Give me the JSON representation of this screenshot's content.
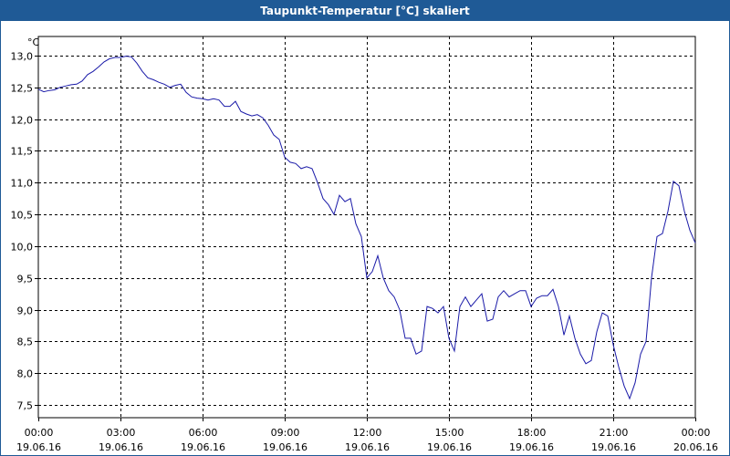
{
  "window": {
    "title": "Taupunkt-Temperatur [°C] skaliert"
  },
  "colors": {
    "titlebar": "#1f5a96",
    "line": "#1a1aa8",
    "grid": "#000000"
  },
  "chart_data": {
    "type": "line",
    "title": "",
    "xlabel": "",
    "ylabel": "°C",
    "ylim": [
      7.3,
      13.3
    ],
    "yticks": [
      7.5,
      8.0,
      8.5,
      9.0,
      9.5,
      10.0,
      10.5,
      11.0,
      11.5,
      12.0,
      12.5,
      13.0
    ],
    "ytick_labels": [
      "7,5",
      "8,0",
      "8,5",
      "9,0",
      "9,5",
      "10,0",
      "10,5",
      "11,0",
      "11,5",
      "12,0",
      "12,5",
      "13,0"
    ],
    "xlim": [
      0,
      24
    ],
    "xticks": [
      {
        "t": 0,
        "time": "00:00",
        "date": "19.06.16"
      },
      {
        "t": 3,
        "time": "03:00",
        "date": "19.06.16"
      },
      {
        "t": 6,
        "time": "06:00",
        "date": "19.06.16"
      },
      {
        "t": 9,
        "time": "09:00",
        "date": "19.06.16"
      },
      {
        "t": 12,
        "time": "12:00",
        "date": "19.06.16"
      },
      {
        "t": 15,
        "time": "15:00",
        "date": "19.06.16"
      },
      {
        "t": 18,
        "time": "18:00",
        "date": "19.06.16"
      },
      {
        "t": 21,
        "time": "21:00",
        "date": "19.06.16"
      },
      {
        "t": 24,
        "time": "00:00",
        "date": "20.06.16"
      }
    ],
    "grid": true,
    "series": [
      {
        "points": [
          [
            0.0,
            12.47
          ],
          [
            0.2,
            12.43
          ],
          [
            0.4,
            12.45
          ],
          [
            0.6,
            12.46
          ],
          [
            0.8,
            12.5
          ],
          [
            1.0,
            12.52
          ],
          [
            1.2,
            12.54
          ],
          [
            1.4,
            12.55
          ],
          [
            1.6,
            12.6
          ],
          [
            1.8,
            12.7
          ],
          [
            2.0,
            12.75
          ],
          [
            2.2,
            12.82
          ],
          [
            2.4,
            12.9
          ],
          [
            2.6,
            12.95
          ],
          [
            2.8,
            12.97
          ],
          [
            3.0,
            12.97
          ],
          [
            3.2,
            12.99
          ],
          [
            3.4,
            12.98
          ],
          [
            3.6,
            12.88
          ],
          [
            3.8,
            12.75
          ],
          [
            4.0,
            12.65
          ],
          [
            4.2,
            12.62
          ],
          [
            4.4,
            12.58
          ],
          [
            4.6,
            12.55
          ],
          [
            4.8,
            12.5
          ],
          [
            5.0,
            12.53
          ],
          [
            5.2,
            12.55
          ],
          [
            5.4,
            12.42
          ],
          [
            5.6,
            12.35
          ],
          [
            5.8,
            12.33
          ],
          [
            6.0,
            12.32
          ],
          [
            6.2,
            12.3
          ],
          [
            6.4,
            12.32
          ],
          [
            6.6,
            12.3
          ],
          [
            6.8,
            12.2
          ],
          [
            7.0,
            12.2
          ],
          [
            7.2,
            12.28
          ],
          [
            7.4,
            12.12
          ],
          [
            7.6,
            12.08
          ],
          [
            7.8,
            12.05
          ],
          [
            8.0,
            12.07
          ],
          [
            8.2,
            12.02
          ],
          [
            8.4,
            11.9
          ],
          [
            8.6,
            11.75
          ],
          [
            8.8,
            11.68
          ],
          [
            9.0,
            11.4
          ],
          [
            9.2,
            11.32
          ],
          [
            9.4,
            11.3
          ],
          [
            9.6,
            11.22
          ],
          [
            9.8,
            11.25
          ],
          [
            10.0,
            11.22
          ],
          [
            10.2,
            11.0
          ],
          [
            10.4,
            10.75
          ],
          [
            10.6,
            10.65
          ],
          [
            10.8,
            10.5
          ],
          [
            11.0,
            10.8
          ],
          [
            11.2,
            10.7
          ],
          [
            11.4,
            10.75
          ],
          [
            11.6,
            10.35
          ],
          [
            11.8,
            10.15
          ],
          [
            12.0,
            9.5
          ],
          [
            12.2,
            9.6
          ],
          [
            12.4,
            9.85
          ],
          [
            12.6,
            9.5
          ],
          [
            12.8,
            9.3
          ],
          [
            13.0,
            9.2
          ],
          [
            13.2,
            9.0
          ],
          [
            13.4,
            8.55
          ],
          [
            13.6,
            8.55
          ],
          [
            13.8,
            8.3
          ],
          [
            14.0,
            8.35
          ],
          [
            14.2,
            9.05
          ],
          [
            14.4,
            9.02
          ],
          [
            14.6,
            8.95
          ],
          [
            14.8,
            9.05
          ],
          [
            15.0,
            8.55
          ],
          [
            15.2,
            8.35
          ],
          [
            15.4,
            9.05
          ],
          [
            15.6,
            9.2
          ],
          [
            15.8,
            9.05
          ],
          [
            16.0,
            9.15
          ],
          [
            16.2,
            9.25
          ],
          [
            16.4,
            8.82
          ],
          [
            16.6,
            8.85
          ],
          [
            16.8,
            9.2
          ],
          [
            17.0,
            9.3
          ],
          [
            17.2,
            9.2
          ],
          [
            17.4,
            9.25
          ],
          [
            17.6,
            9.3
          ],
          [
            17.8,
            9.3
          ],
          [
            18.0,
            9.05
          ],
          [
            18.2,
            9.18
          ],
          [
            18.4,
            9.22
          ],
          [
            18.6,
            9.22
          ],
          [
            18.8,
            9.32
          ],
          [
            19.0,
            9.05
          ],
          [
            19.2,
            8.6
          ],
          [
            19.4,
            8.9
          ],
          [
            19.6,
            8.55
          ],
          [
            19.8,
            8.3
          ],
          [
            20.0,
            8.15
          ],
          [
            20.2,
            8.2
          ],
          [
            20.4,
            8.65
          ],
          [
            20.6,
            8.95
          ],
          [
            20.8,
            8.9
          ],
          [
            21.0,
            8.45
          ],
          [
            21.2,
            8.1
          ],
          [
            21.4,
            7.8
          ],
          [
            21.6,
            7.6
          ],
          [
            21.8,
            7.85
          ],
          [
            22.0,
            8.3
          ],
          [
            22.2,
            8.5
          ],
          [
            22.4,
            9.5
          ],
          [
            22.6,
            10.15
          ],
          [
            22.8,
            10.2
          ],
          [
            23.0,
            10.55
          ],
          [
            23.2,
            11.02
          ],
          [
            23.4,
            10.95
          ],
          [
            23.6,
            10.55
          ],
          [
            23.8,
            10.25
          ],
          [
            24.0,
            10.05
          ]
        ]
      }
    ]
  }
}
